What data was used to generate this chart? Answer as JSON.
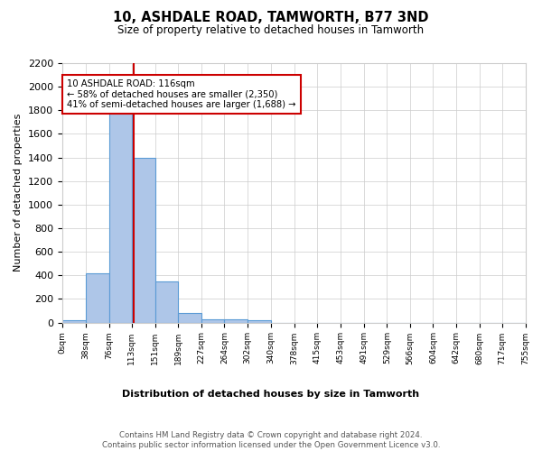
{
  "title": "10, ASHDALE ROAD, TAMWORTH, B77 3ND",
  "subtitle": "Size of property relative to detached houses in Tamworth",
  "xlabel": "Distribution of detached houses by size in Tamworth",
  "ylabel": "Number of detached properties",
  "bar_edges": [
    0,
    38,
    76,
    113,
    151,
    189,
    227,
    264,
    302,
    340,
    378,
    415,
    453,
    491,
    529,
    566,
    604,
    642,
    680,
    717,
    755
  ],
  "bar_heights": [
    20,
    420,
    1800,
    1400,
    350,
    80,
    30,
    25,
    20,
    0,
    0,
    0,
    0,
    0,
    0,
    0,
    0,
    0,
    0,
    0
  ],
  "bar_color": "#aec6e8",
  "bar_edge_color": "#5b9bd5",
  "property_line_x": 116,
  "property_line_color": "#cc0000",
  "annotation_text": "10 ASHDALE ROAD: 116sqm\n← 58% of detached houses are smaller (2,350)\n41% of semi-detached houses are larger (1,688) →",
  "annotation_box_color": "#cc0000",
  "ylim": [
    0,
    2200
  ],
  "yticks": [
    0,
    200,
    400,
    600,
    800,
    1000,
    1200,
    1400,
    1600,
    1800,
    2000,
    2200
  ],
  "tick_labels": [
    "0sqm",
    "38sqm",
    "76sqm",
    "113sqm",
    "151sqm",
    "189sqm",
    "227sqm",
    "264sqm",
    "302sqm",
    "340sqm",
    "378sqm",
    "415sqm",
    "453sqm",
    "491sqm",
    "529sqm",
    "566sqm",
    "604sqm",
    "642sqm",
    "680sqm",
    "717sqm",
    "755sqm"
  ],
  "footer_text": "Contains HM Land Registry data © Crown copyright and database right 2024.\nContains public sector information licensed under the Open Government Licence v3.0.",
  "bg_color": "#ffffff",
  "grid_color": "#cccccc"
}
